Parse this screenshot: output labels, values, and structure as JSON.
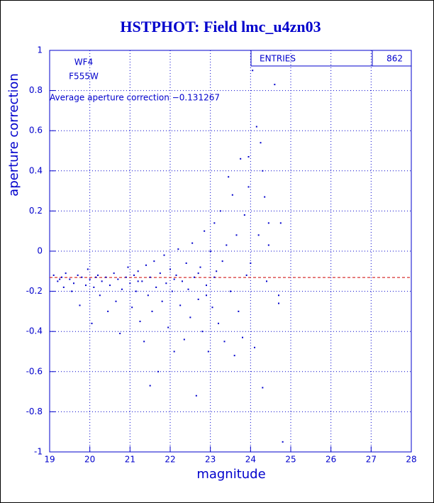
{
  "chart_data": {
    "type": "scatter",
    "title": "HSTPHOT: Field lmc_u4zn03",
    "x_label": "magnitude",
    "y_label": "aperture correction",
    "xlim": [
      19,
      28
    ],
    "ylim": [
      -1,
      1
    ],
    "xticks": [
      19,
      20,
      21,
      22,
      23,
      24,
      25,
      26,
      27,
      28
    ],
    "yticks": [
      -1,
      -0.8,
      -0.6,
      -0.4,
      -0.2,
      0,
      0.2,
      0.4,
      0.6,
      0.8,
      1
    ],
    "grid": true,
    "color": "#0000cc",
    "labels": [
      "WF4",
      "F555W"
    ],
    "average_text": "Average aperture correction −0.131267",
    "average_line": -0.131267,
    "average_color": "#cc0000",
    "stats": {
      "label": "ENTRIES",
      "value": 862
    },
    "x": [
      19.1,
      19.2,
      19.3,
      19.35,
      19.4,
      19.5,
      19.55,
      19.6,
      19.7,
      19.75,
      19.8,
      19.9,
      19.95,
      20.0,
      20.05,
      20.1,
      20.2,
      20.25,
      20.3,
      20.4,
      20.45,
      20.5,
      20.6,
      20.65,
      20.7,
      20.75,
      20.8,
      20.9,
      20.95,
      21.0,
      21.05,
      21.1,
      21.15,
      21.2,
      21.25,
      21.3,
      21.35,
      21.4,
      21.45,
      21.5,
      21.55,
      21.6,
      21.65,
      21.7,
      21.75,
      21.8,
      21.85,
      21.9,
      21.95,
      22.0,
      22.05,
      22.1,
      22.15,
      22.2,
      22.25,
      22.3,
      22.35,
      22.4,
      22.45,
      22.5,
      22.55,
      22.6,
      22.65,
      22.7,
      22.75,
      22.8,
      22.85,
      22.9,
      22.95,
      23.0,
      23.05,
      23.1,
      23.15,
      23.2,
      23.25,
      23.3,
      23.35,
      23.4,
      23.45,
      23.5,
      23.55,
      23.6,
      23.65,
      23.7,
      23.75,
      23.8,
      23.85,
      23.9,
      23.95,
      24.0,
      24.05,
      24.1,
      24.15,
      24.2,
      24.25,
      24.3,
      24.35,
      24.4,
      24.45,
      24.6,
      24.7,
      24.75,
      24.8,
      23.95,
      24.3,
      24.45,
      24.7,
      19.25,
      20.15,
      21.5,
      22.1,
      22.7,
      23.1,
      22.9,
      21.2
    ],
    "values": [
      -0.12,
      -0.15,
      -0.13,
      -0.18,
      -0.11,
      -0.14,
      -0.2,
      -0.16,
      -0.12,
      -0.27,
      -0.13,
      -0.17,
      -0.09,
      -0.14,
      -0.36,
      -0.18,
      -0.12,
      -0.22,
      -0.15,
      -0.13,
      -0.3,
      -0.17,
      -0.11,
      -0.25,
      -0.14,
      -0.41,
      -0.19,
      -0.13,
      -0.08,
      -0.16,
      -0.28,
      -0.12,
      -0.2,
      -0.1,
      -0.35,
      -0.15,
      -0.45,
      -0.07,
      -0.22,
      -0.13,
      -0.3,
      -0.05,
      -0.18,
      -0.6,
      -0.11,
      -0.25,
      -0.02,
      -0.16,
      -0.38,
      -0.09,
      -0.2,
      -0.5,
      -0.12,
      0.01,
      -0.27,
      -0.15,
      -0.44,
      -0.06,
      -0.19,
      -0.33,
      0.04,
      -0.13,
      -0.72,
      -0.24,
      -0.08,
      -0.4,
      0.1,
      -0.17,
      -0.5,
      0.0,
      -0.28,
      0.14,
      -0.1,
      -0.36,
      0.2,
      -0.05,
      -0.45,
      0.03,
      0.37,
      -0.2,
      0.28,
      -0.52,
      0.08,
      -0.3,
      0.46,
      -0.43,
      0.18,
      -0.12,
      0.32,
      -0.06,
      0.9,
      -0.48,
      0.62,
      0.08,
      0.54,
      -0.68,
      0.27,
      -0.15,
      0.14,
      0.83,
      -0.22,
      0.14,
      -0.95,
      0.47,
      0.4,
      0.03,
      -0.26,
      -0.14,
      -0.13,
      -0.67,
      -0.14,
      -0.11,
      -0.13,
      -0.22,
      -0.15
    ]
  }
}
